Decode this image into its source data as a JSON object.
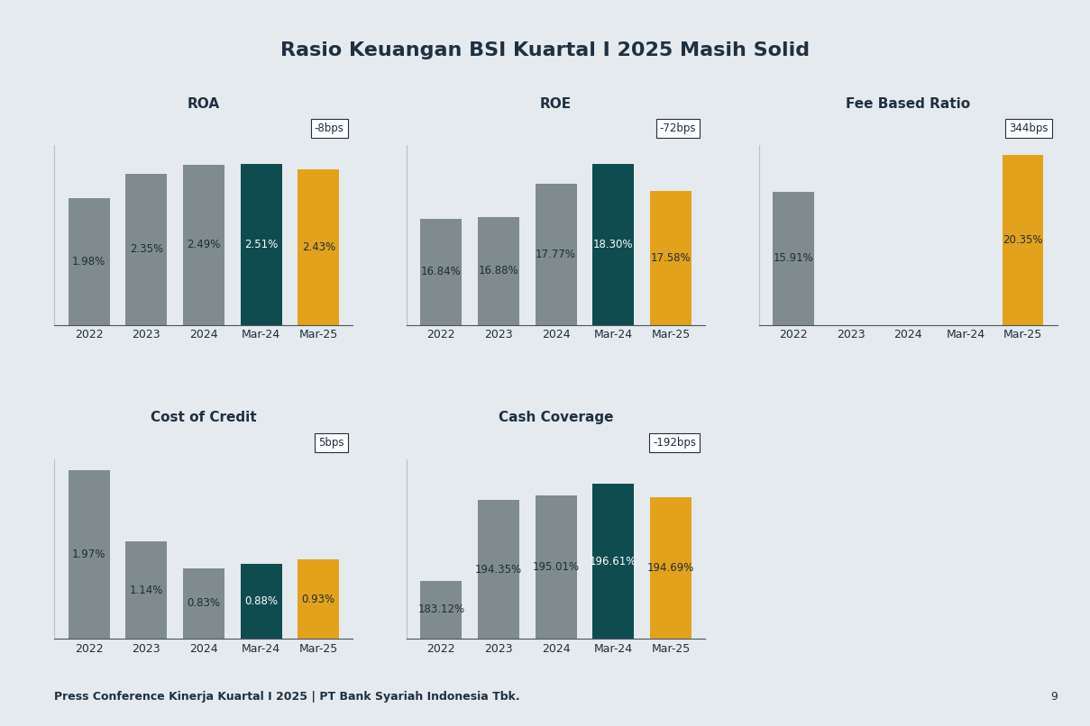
{
  "title": "Rasio Keuangan BSI Kuartal I 2025 Masih Solid",
  "footer": "Press Conference Kinerja Kuartal I 2025 | PT Bank Syariah Indonesia Tbk.",
  "page": 9,
  "chart_data": [
    {
      "type": "bar",
      "title": "ROA",
      "annotation": "-8bps",
      "categories": [
        "2022",
        "2023",
        "2024",
        "Mar-24",
        "Mar-25"
      ],
      "values": [
        1.98,
        2.35,
        2.49,
        2.51,
        2.43
      ],
      "value_labels": [
        "1.98%",
        "2.35%",
        "2.49%",
        "2.51%",
        "2.43%"
      ],
      "colors": [
        "#7f8b8d",
        "#7f8b8d",
        "#7f8b8d",
        "#0f4c50",
        "#e2a21c"
      ],
      "ylim": [
        0,
        2.8
      ],
      "yticks": [],
      "data_labels": true,
      "tick_labels": "x",
      "grid": false
    },
    {
      "type": "bar",
      "title": "ROE",
      "annotation": "-72bps",
      "categories": [
        "2022",
        "2023",
        "2024",
        "Mar-24",
        "Mar-25"
      ],
      "values": [
        16.84,
        16.88,
        17.77,
        18.3,
        17.58
      ],
      "value_labels": [
        "16.84%",
        "16.88%",
        "17.77%",
        "18.30%",
        "17.58%"
      ],
      "colors": [
        "#7f8b8d",
        "#7f8b8d",
        "#7f8b8d",
        "#0f4c50",
        "#e2a21c"
      ],
      "ylim": [
        14,
        18.8
      ],
      "yticks": [],
      "data_labels": true,
      "tick_labels": "x",
      "grid": false
    },
    {
      "type": "bar",
      "title": "Fee Based Ratio",
      "annotation": "344bps",
      "categories": [
        "2022",
        "2023",
        "2024",
        "Mar-24",
        "Mar-25"
      ],
      "values": [
        15.91,
        null,
        null,
        null,
        20.35
      ],
      "value_labels": [
        "15.91%",
        null,
        null,
        null,
        "20.35%"
      ],
      "colors": [
        "#7f8b8d",
        "#7f8b8d",
        "#7f8b8d",
        "#0f4c50",
        "#e2a21c"
      ],
      "ylim": [
        0,
        21.5
      ],
      "yticks": [],
      "data_labels": true,
      "tick_labels": "x",
      "grid": false
    },
    {
      "type": "bar",
      "title": "Cost of Credit",
      "annotation": "5bps",
      "categories": [
        "2022",
        "2023",
        "2024",
        "Mar-24",
        "Mar-25"
      ],
      "values": [
        1.97,
        1.14,
        0.83,
        0.88,
        0.93
      ],
      "value_labels": [
        "1.97%",
        "1.14%",
        "0.83%",
        "0.88%",
        "0.93%"
      ],
      "colors": [
        "#7f8b8d",
        "#7f8b8d",
        "#7f8b8d",
        "#0f4c50",
        "#e2a21c"
      ],
      "ylim": [
        0,
        2.1
      ],
      "yticks": [],
      "data_labels": true,
      "tick_labels": "x",
      "grid": false
    },
    {
      "type": "bar",
      "title": "Cash Coverage",
      "annotation": "-192bps",
      "categories": [
        "2022",
        "2023",
        "2024",
        "Mar-24",
        "Mar-25"
      ],
      "values": [
        183.12,
        194.35,
        195.01,
        196.61,
        194.69
      ],
      "value_labels": [
        "183.12%",
        "194.35%",
        "195.01%",
        "196.61%",
        "194.69%"
      ],
      "colors": [
        "#7f8b8d",
        "#7f8b8d",
        "#7f8b8d",
        "#0f4c50",
        "#e2a21c"
      ],
      "ylim": [
        175,
        200
      ],
      "yticks": [],
      "data_labels": true,
      "tick_labels": "x",
      "grid": false
    }
  ]
}
